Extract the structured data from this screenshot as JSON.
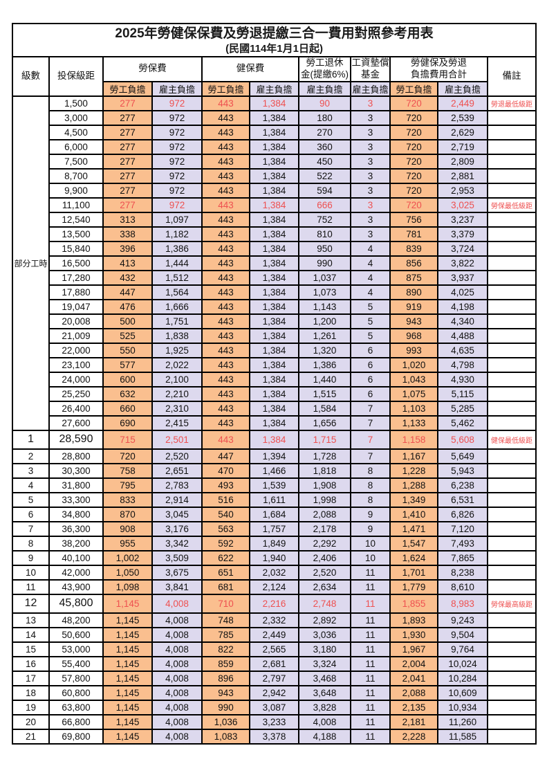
{
  "title": "2025年勞健保保費及勞退提繳三合一費用對照參考用表",
  "subtitle": "(民國114年1月1日起)",
  "colors": {
    "employee_fill": "#FABF8F",
    "employer_fill": "#DDD9EE",
    "highlight_red": "#EE5050",
    "border": "#000000"
  },
  "header": {
    "level": "級數",
    "bracket": "投保級距",
    "labor_insurance": "勞保費",
    "health_insurance": "健保費",
    "pension_line1": "勞工退休",
    "pension_line2": "金(提繳6%)",
    "wage_fund_line1": "工資墊償",
    "wage_fund_line2": "基金",
    "total_line1": "勞健保及勞退",
    "total_line2": "負擔費用合計",
    "employee_share": "勞工負擔",
    "employer_share": "雇主負擔",
    "remark": "備註"
  },
  "part_time_label": "部分工時",
  "part_time_rowspan": 23,
  "rows": [
    {
      "level": "",
      "bracket": "1,500",
      "li_emp": "277",
      "li_er": "972",
      "hi_emp": "443",
      "hi_er": "1,384",
      "pension": "90",
      "fund": "3",
      "tot_emp": "720",
      "tot_er": "2,449",
      "remark": "勞退最低級距",
      "red": true,
      "big": false
    },
    {
      "level": "",
      "bracket": "3,000",
      "li_emp": "277",
      "li_er": "972",
      "hi_emp": "443",
      "hi_er": "1,384",
      "pension": "180",
      "fund": "3",
      "tot_emp": "720",
      "tot_er": "2,539",
      "remark": "",
      "red": false,
      "big": false
    },
    {
      "level": "",
      "bracket": "4,500",
      "li_emp": "277",
      "li_er": "972",
      "hi_emp": "443",
      "hi_er": "1,384",
      "pension": "270",
      "fund": "3",
      "tot_emp": "720",
      "tot_er": "2,629",
      "remark": "",
      "red": false,
      "big": false
    },
    {
      "level": "",
      "bracket": "6,000",
      "li_emp": "277",
      "li_er": "972",
      "hi_emp": "443",
      "hi_er": "1,384",
      "pension": "360",
      "fund": "3",
      "tot_emp": "720",
      "tot_er": "2,719",
      "remark": "",
      "red": false,
      "big": false
    },
    {
      "level": "",
      "bracket": "7,500",
      "li_emp": "277",
      "li_er": "972",
      "hi_emp": "443",
      "hi_er": "1,384",
      "pension": "450",
      "fund": "3",
      "tot_emp": "720",
      "tot_er": "2,809",
      "remark": "",
      "red": false,
      "big": false
    },
    {
      "level": "",
      "bracket": "8,700",
      "li_emp": "277",
      "li_er": "972",
      "hi_emp": "443",
      "hi_er": "1,384",
      "pension": "522",
      "fund": "3",
      "tot_emp": "720",
      "tot_er": "2,881",
      "remark": "",
      "red": false,
      "big": false
    },
    {
      "level": "",
      "bracket": "9,900",
      "li_emp": "277",
      "li_er": "972",
      "hi_emp": "443",
      "hi_er": "1,384",
      "pension": "594",
      "fund": "3",
      "tot_emp": "720",
      "tot_er": "2,953",
      "remark": "",
      "red": false,
      "big": false
    },
    {
      "level": "",
      "bracket": "11,100",
      "li_emp": "277",
      "li_er": "972",
      "hi_emp": "443",
      "hi_er": "1,384",
      "pension": "666",
      "fund": "3",
      "tot_emp": "720",
      "tot_er": "3,025",
      "remark": "勞保最低級距",
      "red": true,
      "big": false
    },
    {
      "level": "",
      "bracket": "12,540",
      "li_emp": "313",
      "li_er": "1,097",
      "hi_emp": "443",
      "hi_er": "1,384",
      "pension": "752",
      "fund": "3",
      "tot_emp": "756",
      "tot_er": "3,237",
      "remark": "",
      "red": false,
      "big": false
    },
    {
      "level": "",
      "bracket": "13,500",
      "li_emp": "338",
      "li_er": "1,182",
      "hi_emp": "443",
      "hi_er": "1,384",
      "pension": "810",
      "fund": "3",
      "tot_emp": "781",
      "tot_er": "3,379",
      "remark": "",
      "red": false,
      "big": false
    },
    {
      "level": "",
      "bracket": "15,840",
      "li_emp": "396",
      "li_er": "1,386",
      "hi_emp": "443",
      "hi_er": "1,384",
      "pension": "950",
      "fund": "4",
      "tot_emp": "839",
      "tot_er": "3,724",
      "remark": "",
      "red": false,
      "big": false
    },
    {
      "level": "",
      "bracket": "16,500",
      "li_emp": "413",
      "li_er": "1,444",
      "hi_emp": "443",
      "hi_er": "1,384",
      "pension": "990",
      "fund": "4",
      "tot_emp": "856",
      "tot_er": "3,822",
      "remark": "",
      "red": false,
      "big": false
    },
    {
      "level": "",
      "bracket": "17,280",
      "li_emp": "432",
      "li_er": "1,512",
      "hi_emp": "443",
      "hi_er": "1,384",
      "pension": "1,037",
      "fund": "4",
      "tot_emp": "875",
      "tot_er": "3,937",
      "remark": "",
      "red": false,
      "big": false
    },
    {
      "level": "",
      "bracket": "17,880",
      "li_emp": "447",
      "li_er": "1,564",
      "hi_emp": "443",
      "hi_er": "1,384",
      "pension": "1,073",
      "fund": "4",
      "tot_emp": "890",
      "tot_er": "4,025",
      "remark": "",
      "red": false,
      "big": false
    },
    {
      "level": "",
      "bracket": "19,047",
      "li_emp": "476",
      "li_er": "1,666",
      "hi_emp": "443",
      "hi_er": "1,384",
      "pension": "1,143",
      "fund": "5",
      "tot_emp": "919",
      "tot_er": "4,198",
      "remark": "",
      "red": false,
      "big": false
    },
    {
      "level": "",
      "bracket": "20,008",
      "li_emp": "500",
      "li_er": "1,751",
      "hi_emp": "443",
      "hi_er": "1,384",
      "pension": "1,200",
      "fund": "5",
      "tot_emp": "943",
      "tot_er": "4,340",
      "remark": "",
      "red": false,
      "big": false
    },
    {
      "level": "",
      "bracket": "21,009",
      "li_emp": "525",
      "li_er": "1,838",
      "hi_emp": "443",
      "hi_er": "1,384",
      "pension": "1,261",
      "fund": "5",
      "tot_emp": "968",
      "tot_er": "4,488",
      "remark": "",
      "red": false,
      "big": false
    },
    {
      "level": "",
      "bracket": "22,000",
      "li_emp": "550",
      "li_er": "1,925",
      "hi_emp": "443",
      "hi_er": "1,384",
      "pension": "1,320",
      "fund": "6",
      "tot_emp": "993",
      "tot_er": "4,635",
      "remark": "",
      "red": false,
      "big": false
    },
    {
      "level": "",
      "bracket": "23,100",
      "li_emp": "577",
      "li_er": "2,022",
      "hi_emp": "443",
      "hi_er": "1,384",
      "pension": "1,386",
      "fund": "6",
      "tot_emp": "1,020",
      "tot_er": "4,798",
      "remark": "",
      "red": false,
      "big": false
    },
    {
      "level": "",
      "bracket": "24,000",
      "li_emp": "600",
      "li_er": "2,100",
      "hi_emp": "443",
      "hi_er": "1,384",
      "pension": "1,440",
      "fund": "6",
      "tot_emp": "1,043",
      "tot_er": "4,930",
      "remark": "",
      "red": false,
      "big": false
    },
    {
      "level": "",
      "bracket": "25,250",
      "li_emp": "632",
      "li_er": "2,210",
      "hi_emp": "443",
      "hi_er": "1,384",
      "pension": "1,515",
      "fund": "6",
      "tot_emp": "1,075",
      "tot_er": "5,115",
      "remark": "",
      "red": false,
      "big": false
    },
    {
      "level": "",
      "bracket": "26,400",
      "li_emp": "660",
      "li_er": "2,310",
      "hi_emp": "443",
      "hi_er": "1,384",
      "pension": "1,584",
      "fund": "7",
      "tot_emp": "1,103",
      "tot_er": "5,285",
      "remark": "",
      "red": false,
      "big": false
    },
    {
      "level": "",
      "bracket": "27,600",
      "li_emp": "690",
      "li_er": "2,415",
      "hi_emp": "443",
      "hi_er": "1,384",
      "pension": "1,656",
      "fund": "7",
      "tot_emp": "1,133",
      "tot_er": "5,462",
      "remark": "",
      "red": false,
      "big": false
    },
    {
      "level": "1",
      "bracket": "28,590",
      "li_emp": "715",
      "li_er": "2,501",
      "hi_emp": "443",
      "hi_er": "1,384",
      "pension": "1,715",
      "fund": "7",
      "tot_emp": "1,158",
      "tot_er": "5,608",
      "remark": "健保最低級距",
      "red": true,
      "big": true
    },
    {
      "level": "2",
      "bracket": "28,800",
      "li_emp": "720",
      "li_er": "2,520",
      "hi_emp": "447",
      "hi_er": "1,394",
      "pension": "1,728",
      "fund": "7",
      "tot_emp": "1,167",
      "tot_er": "5,649",
      "remark": "",
      "red": false,
      "big": false
    },
    {
      "level": "3",
      "bracket": "30,300",
      "li_emp": "758",
      "li_er": "2,651",
      "hi_emp": "470",
      "hi_er": "1,466",
      "pension": "1,818",
      "fund": "8",
      "tot_emp": "1,228",
      "tot_er": "5,943",
      "remark": "",
      "red": false,
      "big": false
    },
    {
      "level": "4",
      "bracket": "31,800",
      "li_emp": "795",
      "li_er": "2,783",
      "hi_emp": "493",
      "hi_er": "1,539",
      "pension": "1,908",
      "fund": "8",
      "tot_emp": "1,288",
      "tot_er": "6,238",
      "remark": "",
      "red": false,
      "big": false
    },
    {
      "level": "5",
      "bracket": "33,300",
      "li_emp": "833",
      "li_er": "2,914",
      "hi_emp": "516",
      "hi_er": "1,611",
      "pension": "1,998",
      "fund": "8",
      "tot_emp": "1,349",
      "tot_er": "6,531",
      "remark": "",
      "red": false,
      "big": false
    },
    {
      "level": "6",
      "bracket": "34,800",
      "li_emp": "870",
      "li_er": "3,045",
      "hi_emp": "540",
      "hi_er": "1,684",
      "pension": "2,088",
      "fund": "9",
      "tot_emp": "1,410",
      "tot_er": "6,826",
      "remark": "",
      "red": false,
      "big": false
    },
    {
      "level": "7",
      "bracket": "36,300",
      "li_emp": "908",
      "li_er": "3,176",
      "hi_emp": "563",
      "hi_er": "1,757",
      "pension": "2,178",
      "fund": "9",
      "tot_emp": "1,471",
      "tot_er": "7,120",
      "remark": "",
      "red": false,
      "big": false
    },
    {
      "level": "8",
      "bracket": "38,200",
      "li_emp": "955",
      "li_er": "3,342",
      "hi_emp": "592",
      "hi_er": "1,849",
      "pension": "2,292",
      "fund": "10",
      "tot_emp": "1,547",
      "tot_er": "7,493",
      "remark": "",
      "red": false,
      "big": false
    },
    {
      "level": "9",
      "bracket": "40,100",
      "li_emp": "1,002",
      "li_er": "3,509",
      "hi_emp": "622",
      "hi_er": "1,940",
      "pension": "2,406",
      "fund": "10",
      "tot_emp": "1,624",
      "tot_er": "7,865",
      "remark": "",
      "red": false,
      "big": false
    },
    {
      "level": "10",
      "bracket": "42,000",
      "li_emp": "1,050",
      "li_er": "3,675",
      "hi_emp": "651",
      "hi_er": "2,032",
      "pension": "2,520",
      "fund": "11",
      "tot_emp": "1,701",
      "tot_er": "8,238",
      "remark": "",
      "red": false,
      "big": false
    },
    {
      "level": "11",
      "bracket": "43,900",
      "li_emp": "1,098",
      "li_er": "3,841",
      "hi_emp": "681",
      "hi_er": "2,124",
      "pension": "2,634",
      "fund": "11",
      "tot_emp": "1,779",
      "tot_er": "8,610",
      "remark": "",
      "red": false,
      "big": false
    },
    {
      "level": "12",
      "bracket": "45,800",
      "li_emp": "1,145",
      "li_er": "4,008",
      "hi_emp": "710",
      "hi_er": "2,216",
      "pension": "2,748",
      "fund": "11",
      "tot_emp": "1,855",
      "tot_er": "8,983",
      "remark": "勞保最高級距",
      "red": true,
      "big": true
    },
    {
      "level": "13",
      "bracket": "48,200",
      "li_emp": "1,145",
      "li_er": "4,008",
      "hi_emp": "748",
      "hi_er": "2,332",
      "pension": "2,892",
      "fund": "11",
      "tot_emp": "1,893",
      "tot_er": "9,243",
      "remark": "",
      "red": false,
      "big": false
    },
    {
      "level": "14",
      "bracket": "50,600",
      "li_emp": "1,145",
      "li_er": "4,008",
      "hi_emp": "785",
      "hi_er": "2,449",
      "pension": "3,036",
      "fund": "11",
      "tot_emp": "1,930",
      "tot_er": "9,504",
      "remark": "",
      "red": false,
      "big": false
    },
    {
      "level": "15",
      "bracket": "53,000",
      "li_emp": "1,145",
      "li_er": "4,008",
      "hi_emp": "822",
      "hi_er": "2,565",
      "pension": "3,180",
      "fund": "11",
      "tot_emp": "1,967",
      "tot_er": "9,764",
      "remark": "",
      "red": false,
      "big": false
    },
    {
      "level": "16",
      "bracket": "55,400",
      "li_emp": "1,145",
      "li_er": "4,008",
      "hi_emp": "859",
      "hi_er": "2,681",
      "pension": "3,324",
      "fund": "11",
      "tot_emp": "2,004",
      "tot_er": "10,024",
      "remark": "",
      "red": false,
      "big": false
    },
    {
      "level": "17",
      "bracket": "57,800",
      "li_emp": "1,145",
      "li_er": "4,008",
      "hi_emp": "896",
      "hi_er": "2,797",
      "pension": "3,468",
      "fund": "11",
      "tot_emp": "2,041",
      "tot_er": "10,284",
      "remark": "",
      "red": false,
      "big": false
    },
    {
      "level": "18",
      "bracket": "60,800",
      "li_emp": "1,145",
      "li_er": "4,008",
      "hi_emp": "943",
      "hi_er": "2,942",
      "pension": "3,648",
      "fund": "11",
      "tot_emp": "2,088",
      "tot_er": "10,609",
      "remark": "",
      "red": false,
      "big": false
    },
    {
      "level": "19",
      "bracket": "63,800",
      "li_emp": "1,145",
      "li_er": "4,008",
      "hi_emp": "990",
      "hi_er": "3,087",
      "pension": "3,828",
      "fund": "11",
      "tot_emp": "2,135",
      "tot_er": "10,934",
      "remark": "",
      "red": false,
      "big": false
    },
    {
      "level": "20",
      "bracket": "66,800",
      "li_emp": "1,145",
      "li_er": "4,008",
      "hi_emp": "1,036",
      "hi_er": "3,233",
      "pension": "4,008",
      "fund": "11",
      "tot_emp": "2,181",
      "tot_er": "11,260",
      "remark": "",
      "red": false,
      "big": false
    },
    {
      "level": "21",
      "bracket": "69,800",
      "li_emp": "1,145",
      "li_er": "4,008",
      "hi_emp": "1,083",
      "hi_er": "3,378",
      "pension": "4,188",
      "fund": "11",
      "tot_emp": "2,228",
      "tot_er": "11,585",
      "remark": "",
      "red": false,
      "big": false
    }
  ]
}
